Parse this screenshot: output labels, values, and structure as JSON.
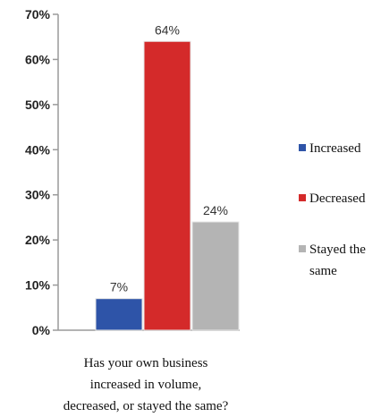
{
  "chart_data": {
    "type": "bar",
    "title": "",
    "xlabel": "Has your own business increased in volume, decreased, or stayed the same?",
    "xlabel_lines": [
      "Has your own business",
      "increased in volume,",
      "decreased, or stayed the same?"
    ],
    "ylabel": "",
    "ylim": [
      0,
      70
    ],
    "yticks": [
      0,
      10,
      20,
      30,
      40,
      50,
      60,
      70
    ],
    "ytick_labels": [
      "0%",
      "10%",
      "20%",
      "30%",
      "40%",
      "50%",
      "60%",
      "70%"
    ],
    "categories": [
      "Increased",
      "Decreased",
      "Stayed the same"
    ],
    "values": [
      7,
      64,
      24
    ],
    "data_labels": [
      "7%",
      "64%",
      "24%"
    ],
    "colors": [
      "#2e54a8",
      "#d42a2a",
      "#b4b4b4"
    ],
    "legend": {
      "position": "right",
      "entries": [
        {
          "lines": [
            "Increased"
          ]
        },
        {
          "lines": [
            "Decreased"
          ]
        },
        {
          "lines": [
            "Stayed the",
            "same"
          ]
        }
      ]
    },
    "grid": false
  }
}
